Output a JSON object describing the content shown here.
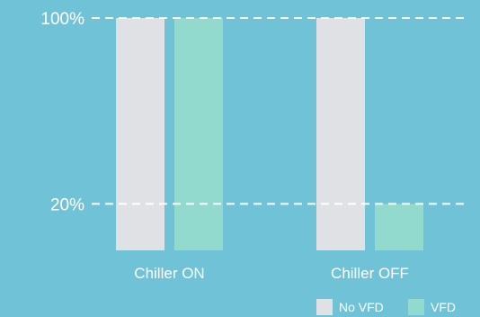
{
  "chart_data": {
    "type": "bar",
    "categories": [
      "Chiller ON",
      "Chiller OFF"
    ],
    "series": [
      {
        "name": "No VFD",
        "color": "#dfe1e5",
        "values": [
          100,
          100
        ]
      },
      {
        "name": "VFD",
        "color": "#92d9ce",
        "values": [
          100,
          20
        ]
      }
    ],
    "y_ticks": [
      {
        "value": 20,
        "label": "20%"
      },
      {
        "value": 100,
        "label": "100%"
      }
    ],
    "ylim": [
      0,
      100
    ],
    "grid": "dashed reference lines at tick values",
    "legend": "bottom-right",
    "colors": {
      "background": "#70c3d6",
      "text": "#ffffff"
    }
  }
}
